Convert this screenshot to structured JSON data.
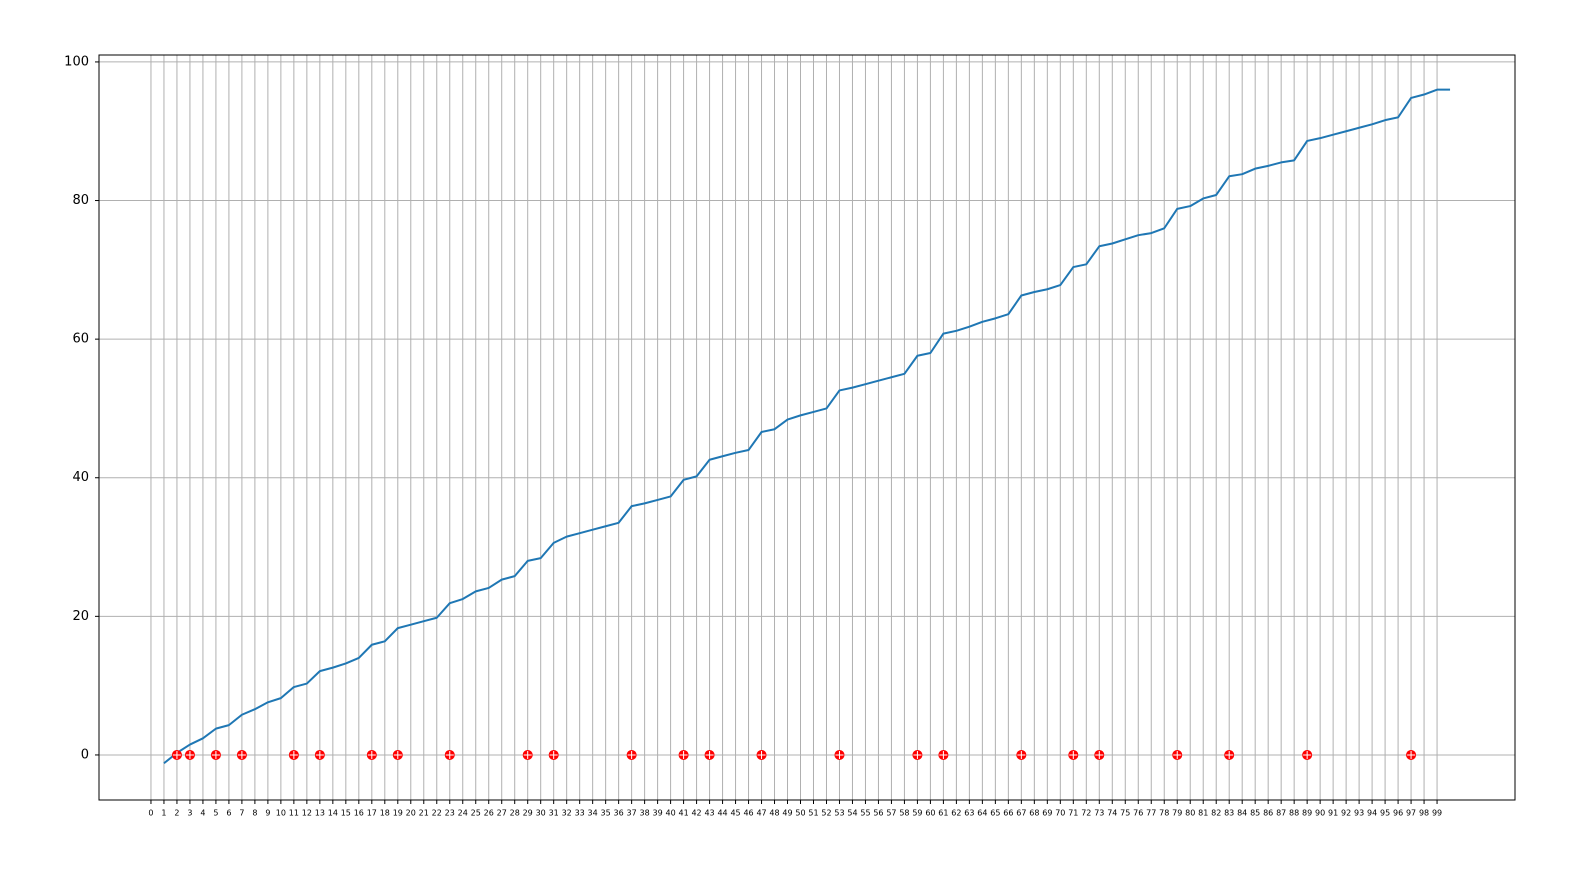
{
  "chart_data": {
    "type": "line",
    "xlim": [
      -4,
      105
    ],
    "ylim": [
      -6.5,
      101
    ],
    "xticks": [
      0,
      1,
      2,
      3,
      4,
      5,
      6,
      7,
      8,
      9,
      10,
      11,
      12,
      13,
      14,
      15,
      16,
      17,
      18,
      19,
      20,
      21,
      22,
      23,
      24,
      25,
      26,
      27,
      28,
      29,
      30,
      31,
      32,
      33,
      34,
      35,
      36,
      37,
      38,
      39,
      40,
      41,
      42,
      43,
      44,
      45,
      46,
      47,
      48,
      49,
      50,
      51,
      52,
      53,
      54,
      55,
      56,
      57,
      58,
      59,
      60,
      61,
      62,
      63,
      64,
      65,
      66,
      67,
      68,
      69,
      70,
      71,
      72,
      73,
      74,
      75,
      76,
      77,
      78,
      79,
      80,
      81,
      82,
      83,
      84,
      85,
      86,
      87,
      88,
      89,
      90,
      91,
      92,
      93,
      94,
      95,
      96,
      97,
      98,
      99
    ],
    "yticks": [
      0,
      20,
      40,
      60,
      80,
      100
    ],
    "grid": true,
    "series": [
      {
        "style": "line",
        "color": "#1f77b4",
        "x": [
          1,
          2,
          3,
          4,
          5,
          6,
          7,
          8,
          9,
          10,
          11,
          12,
          13,
          14,
          15,
          16,
          17,
          18,
          19,
          20,
          21,
          22,
          23,
          24,
          25,
          26,
          27,
          28,
          29,
          30,
          31,
          32,
          33,
          34,
          35,
          36,
          37,
          38,
          39,
          40,
          41,
          42,
          43,
          44,
          45,
          46,
          47,
          48,
          49,
          50,
          51,
          52,
          53,
          54,
          55,
          56,
          57,
          58,
          59,
          60,
          61,
          62,
          63,
          64,
          65,
          66,
          67,
          68,
          69,
          70,
          71,
          72,
          73,
          74,
          75,
          76,
          77,
          78,
          79,
          80,
          81,
          82,
          83,
          84,
          85,
          86,
          87,
          88,
          89,
          90,
          91,
          92,
          93,
          94,
          95,
          96,
          97,
          98,
          99,
          100
        ],
        "values": [
          -1.2,
          0.3,
          1.5,
          2.4,
          3.8,
          4.3,
          5.8,
          6.6,
          7.6,
          8.2,
          9.8,
          10.3,
          12.1,
          12.6,
          13.2,
          14.0,
          15.9,
          16.4,
          18.3,
          18.8,
          19.3,
          19.8,
          21.9,
          22.5,
          23.6,
          24.1,
          25.3,
          25.8,
          28.0,
          28.4,
          30.6,
          31.5,
          32.0,
          32.5,
          33.0,
          33.5,
          35.9,
          36.3,
          36.8,
          37.3,
          39.7,
          40.2,
          42.6,
          43.1,
          43.6,
          44.0,
          46.6,
          47.0,
          48.4,
          49.0,
          49.5,
          50.0,
          52.6,
          53.0,
          53.5,
          54.0,
          54.5,
          55.0,
          57.6,
          58.0,
          60.8,
          61.2,
          61.8,
          62.5,
          63.0,
          63.6,
          66.3,
          66.8,
          67.2,
          67.8,
          70.4,
          70.8,
          73.4,
          73.8,
          74.4,
          75.0,
          75.3,
          76.0,
          78.8,
          79.2,
          80.3,
          80.8,
          83.5,
          83.8,
          84.6,
          85.0,
          85.5,
          85.8,
          88.6,
          89.0,
          89.5,
          90.0,
          90.5,
          91.0,
          91.6,
          92.0,
          94.8,
          95.3,
          96.0,
          96.0
        ]
      },
      {
        "style": "points",
        "color": "#ff0000",
        "x": [
          2,
          3,
          5,
          7,
          11,
          13,
          17,
          19,
          23,
          29,
          31,
          37,
          41,
          43,
          47,
          53,
          59,
          61,
          67,
          71,
          73,
          79,
          83,
          89,
          97
        ],
        "values": [
          0,
          0,
          0,
          0,
          0,
          0,
          0,
          0,
          0,
          0,
          0,
          0,
          0,
          0,
          0,
          0,
          0,
          0,
          0,
          0,
          0,
          0,
          0,
          0,
          0
        ]
      }
    ]
  }
}
